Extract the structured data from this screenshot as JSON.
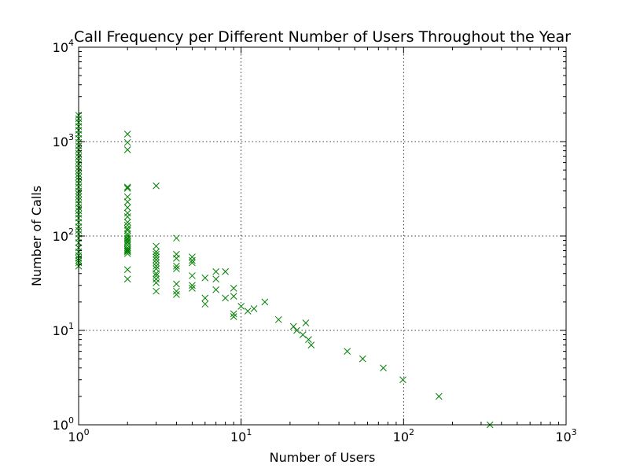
{
  "chart_data": {
    "type": "scatter",
    "title": "Call Frequency per Different Number of Users Throughout the Year",
    "xlabel": "Number of Users",
    "ylabel": "Number of Calls",
    "xscale": "log",
    "yscale": "log",
    "xlim": [
      1,
      1000
    ],
    "ylim": [
      1,
      10000
    ],
    "grid": true,
    "marker": "x",
    "marker_color": "#008000",
    "x_ticks": [
      {
        "base": "10",
        "exp": "0",
        "value": 1
      },
      {
        "base": "10",
        "exp": "1",
        "value": 10
      },
      {
        "base": "10",
        "exp": "2",
        "value": 100
      },
      {
        "base": "10",
        "exp": "3",
        "value": 1000
      }
    ],
    "y_ticks": [
      {
        "base": "10",
        "exp": "0",
        "value": 1
      },
      {
        "base": "10",
        "exp": "1",
        "value": 10
      },
      {
        "base": "10",
        "exp": "2",
        "value": 100
      },
      {
        "base": "10",
        "exp": "3",
        "value": 1000
      },
      {
        "base": "10",
        "exp": "4",
        "value": 10000
      }
    ],
    "points": [
      [
        1,
        48
      ],
      [
        1,
        52
      ],
      [
        1,
        55
      ],
      [
        1,
        58
      ],
      [
        1,
        62
      ],
      [
        1,
        68
      ],
      [
        1,
        75
      ],
      [
        1,
        85
      ],
      [
        1,
        95
      ],
      [
        1,
        105
      ],
      [
        1,
        115
      ],
      [
        1,
        125
      ],
      [
        1,
        140
      ],
      [
        1,
        155
      ],
      [
        1,
        170
      ],
      [
        1,
        185
      ],
      [
        1,
        200
      ],
      [
        1,
        220
      ],
      [
        1,
        240
      ],
      [
        1,
        260
      ],
      [
        1,
        280
      ],
      [
        1,
        300
      ],
      [
        1,
        330
      ],
      [
        1,
        360
      ],
      [
        1,
        390
      ],
      [
        1,
        420
      ],
      [
        1,
        450
      ],
      [
        1,
        490
      ],
      [
        1,
        530
      ],
      [
        1,
        580
      ],
      [
        1,
        630
      ],
      [
        1,
        690
      ],
      [
        1,
        750
      ],
      [
        1,
        820
      ],
      [
        1,
        900
      ],
      [
        1,
        980
      ],
      [
        1,
        1080
      ],
      [
        1,
        1200
      ],
      [
        1,
        1320
      ],
      [
        1,
        1450
      ],
      [
        1,
        1600
      ],
      [
        1,
        1750
      ],
      [
        1,
        1900
      ],
      [
        2,
        1200
      ],
      [
        2,
        980
      ],
      [
        2,
        820
      ],
      [
        2,
        330
      ],
      [
        2,
        320
      ],
      [
        2,
        260
      ],
      [
        2,
        230
      ],
      [
        2,
        200
      ],
      [
        2,
        175
      ],
      [
        2,
        160
      ],
      [
        2,
        140
      ],
      [
        2,
        130
      ],
      [
        2,
        120
      ],
      [
        2,
        115
      ],
      [
        2,
        105
      ],
      [
        2,
        100
      ],
      [
        2,
        95
      ],
      [
        2,
        92
      ],
      [
        2,
        88
      ],
      [
        2,
        85
      ],
      [
        2,
        80
      ],
      [
        2,
        75
      ],
      [
        2,
        72
      ],
      [
        2,
        70
      ],
      [
        2,
        68
      ],
      [
        2,
        65
      ],
      [
        2,
        44
      ],
      [
        2,
        35
      ],
      [
        3,
        340
      ],
      [
        3,
        78
      ],
      [
        3,
        68
      ],
      [
        3,
        64
      ],
      [
        3,
        60
      ],
      [
        3,
        56
      ],
      [
        3,
        52
      ],
      [
        3,
        48
      ],
      [
        3,
        45
      ],
      [
        3,
        40
      ],
      [
        3,
        38
      ],
      [
        3,
        35
      ],
      [
        3,
        32
      ],
      [
        3,
        26
      ],
      [
        4,
        95
      ],
      [
        4,
        64
      ],
      [
        4,
        58
      ],
      [
        4,
        48
      ],
      [
        4,
        45
      ],
      [
        4,
        31
      ],
      [
        4,
        26
      ],
      [
        4,
        24
      ],
      [
        5,
        60
      ],
      [
        5,
        55
      ],
      [
        5,
        52
      ],
      [
        5,
        38
      ],
      [
        5,
        30
      ],
      [
        5,
        28
      ],
      [
        6,
        36
      ],
      [
        6,
        22
      ],
      [
        6,
        19
      ],
      [
        7,
        42
      ],
      [
        7,
        35
      ],
      [
        7,
        27
      ],
      [
        8,
        42
      ],
      [
        8,
        22
      ],
      [
        9,
        28
      ],
      [
        9,
        23
      ],
      [
        9,
        15
      ],
      [
        9,
        14
      ],
      [
        10,
        18
      ],
      [
        11,
        16
      ],
      [
        12,
        17
      ],
      [
        14,
        20
      ],
      [
        17,
        13
      ],
      [
        21,
        11
      ],
      [
        22,
        10
      ],
      [
        24,
        9
      ],
      [
        25,
        12
      ],
      [
        26,
        8
      ],
      [
        27,
        7
      ],
      [
        45,
        6
      ],
      [
        56,
        5
      ],
      [
        75,
        4
      ],
      [
        99,
        3
      ],
      [
        165,
        2
      ],
      [
        340,
        1
      ]
    ]
  }
}
